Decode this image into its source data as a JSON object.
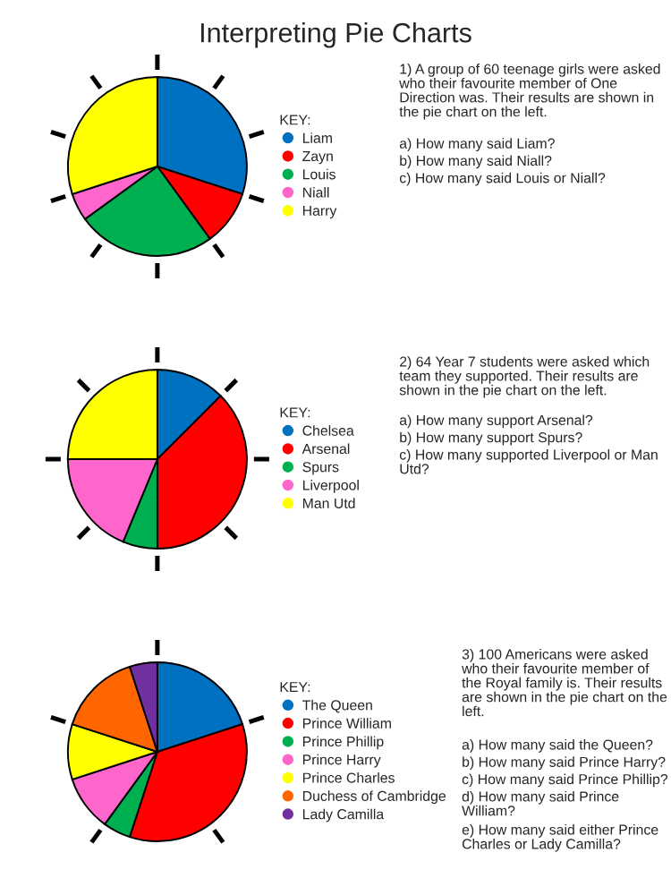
{
  "chart_data": [
    {
      "type": "pie",
      "title": "Interpreting Pie Charts",
      "legend_title": "KEY:",
      "legend": "right",
      "categories": [
        "Liam",
        "Zayn",
        "Louis",
        "Niall",
        "Harry"
      ],
      "values": [
        30,
        10,
        25,
        5,
        30
      ],
      "colors": [
        "#0070c0",
        "#ff0000",
        "#00b050",
        "#ff66cc",
        "#ffff00"
      ],
      "annotations": [
        "1) A group of 60 teenage girls were asked who their favourite member of One Direction was. Their results are shown in the pie chart on the left.",
        "a) How many said Liam?",
        "b) How many said Niall?",
        "c) How many said Louis or Niall?"
      ]
    },
    {
      "type": "pie",
      "legend_title": "KEY:",
      "legend": "right",
      "categories": [
        "Chelsea",
        "Arsenal",
        "Spurs",
        "Liverpool",
        "Man Utd"
      ],
      "values": [
        12.5,
        37.5,
        6.25,
        18.75,
        25
      ],
      "colors": [
        "#0070c0",
        "#ff0000",
        "#00b050",
        "#ff66cc",
        "#ffff00"
      ],
      "annotations": [
        "2) 64 Year 7 students were asked which team they supported. Their results are shown in the pie chart on the left.",
        "a) How many support Arsenal?",
        "b) How many support Spurs?",
        "c) How many supported Liverpool or Man Utd?"
      ]
    },
    {
      "type": "pie",
      "legend_title": "KEY:",
      "legend": "right",
      "categories": [
        "The Queen",
        "Prince William",
        "Prince Phillip",
        "Prince Harry",
        "Prince Charles",
        "Duchess of Cambridge",
        "Lady Camilla"
      ],
      "values": [
        20,
        35,
        5,
        10,
        10,
        15,
        5
      ],
      "colors": [
        "#0070c0",
        "#ff0000",
        "#00b050",
        "#ff66cc",
        "#ffff00",
        "#ff6600",
        "#7030a0"
      ],
      "annotations": [
        "3) 100 Americans were asked who their favourite member of the Royal family is. Their results are shown in the pie chart on the left.",
        "a) How many said the Queen?",
        "b) How many said Prince Harry?",
        "c) How many said Prince Phillip?",
        "d) How many said Prince William?",
        "e) How many said either Prince Charles or Lady Camilla?"
      ]
    }
  ]
}
